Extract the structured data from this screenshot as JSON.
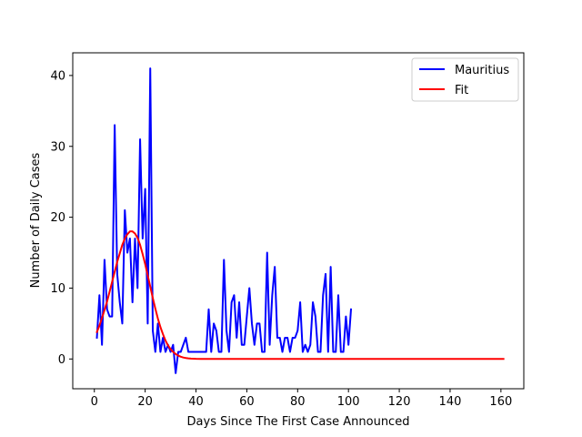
{
  "chart_data": {
    "type": "line",
    "title": "",
    "xlabel": "Days Since The First Case Announced",
    "ylabel": "Number of Daily Cases",
    "xlim": [
      -8.5,
      169
    ],
    "ylim": [
      -4.2,
      43.2
    ],
    "xticks": [
      0,
      20,
      40,
      60,
      80,
      100,
      120,
      140,
      160
    ],
    "yticks": [
      0,
      10,
      20,
      30,
      40
    ],
    "grid": false,
    "legend_position": "top-right",
    "series": [
      {
        "name": "Mauritius",
        "color": "#0000ff",
        "x": [
          1,
          2,
          3,
          4,
          5,
          6,
          7,
          8,
          9,
          10,
          11,
          12,
          13,
          14,
          15,
          16,
          17,
          18,
          19,
          20,
          21,
          22,
          23,
          24,
          25,
          26,
          27,
          28,
          29,
          30,
          31,
          32,
          33,
          34,
          35,
          36,
          37,
          38,
          39,
          40,
          41,
          42,
          43,
          44,
          45,
          46,
          47,
          48,
          49,
          50,
          51,
          52,
          53,
          54,
          55,
          56,
          57,
          58,
          59,
          60,
          61,
          62,
          63,
          64,
          65,
          66,
          67,
          68,
          69,
          70,
          71,
          72,
          73,
          74,
          75,
          76,
          77,
          78,
          79,
          80,
          81,
          82,
          83,
          84,
          85,
          86,
          87,
          88,
          89,
          90,
          91,
          92,
          93,
          94,
          95,
          96,
          97,
          98,
          99,
          100,
          101
        ],
        "y": [
          3,
          9,
          2,
          14,
          7,
          6,
          6,
          33,
          12,
          8,
          5,
          21,
          15,
          17,
          8,
          17,
          10,
          31,
          17,
          24,
          5,
          41,
          4,
          1,
          5,
          1,
          3,
          1,
          2,
          1,
          2,
          -2,
          1,
          1,
          2,
          3,
          1,
          1,
          1,
          1,
          1,
          1,
          1,
          1,
          7,
          1,
          5,
          4,
          1,
          1,
          14,
          4,
          1,
          8,
          9,
          3,
          8,
          2,
          2,
          6,
          10,
          5,
          2,
          5,
          5,
          1,
          1,
          15,
          2,
          9,
          13,
          3,
          3,
          1,
          3,
          3,
          1,
          3,
          3,
          4,
          8,
          1,
          2,
          1,
          2,
          8,
          6,
          1,
          1,
          9,
          12,
          1,
          13,
          1,
          1,
          9,
          1,
          1,
          6,
          2,
          7
        ]
      },
      {
        "name": "Fit",
        "color": "#ff0000",
        "x": [
          1,
          2,
          3,
          4,
          5,
          6,
          7,
          8,
          9,
          10,
          11,
          12,
          13,
          14,
          15,
          16,
          17,
          18,
          19,
          20,
          21,
          22,
          23,
          24,
          25,
          26,
          27,
          28,
          29,
          30,
          31,
          32,
          33,
          34,
          35,
          36,
          37,
          38,
          39,
          40,
          42,
          44,
          46,
          48,
          50,
          55,
          60,
          70,
          80,
          90,
          100,
          110,
          120,
          130,
          140,
          150,
          161
        ],
        "y": [
          3.8,
          4.7,
          5.8,
          6.9,
          8.1,
          9.5,
          10.9,
          12.3,
          13.7,
          14.9,
          16.1,
          17.0,
          17.6,
          18.0,
          18.0,
          17.7,
          17.1,
          16.1,
          14.8,
          13.4,
          11.8,
          10.2,
          8.6,
          7.1,
          5.7,
          4.5,
          3.5,
          2.6,
          1.9,
          1.4,
          1.0,
          0.7,
          0.48,
          0.32,
          0.21,
          0.14,
          0.09,
          0.06,
          0.04,
          0.02,
          0.01,
          0.0,
          0.0,
          0.0,
          0.0,
          0.0,
          0.0,
          0.0,
          0.0,
          0.0,
          0.0,
          0.0,
          0.0,
          0.0,
          0.0,
          0.0,
          0.0
        ]
      }
    ]
  }
}
